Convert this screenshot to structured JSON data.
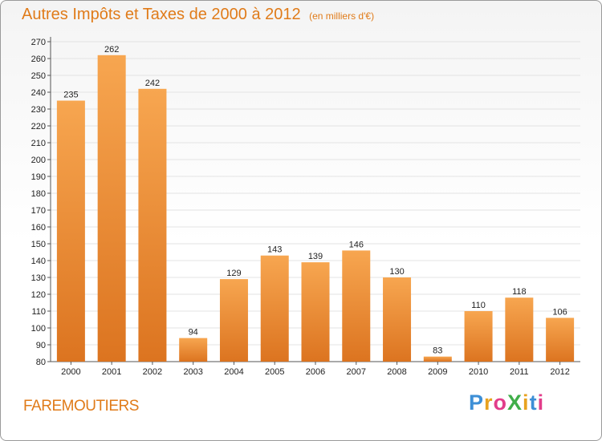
{
  "header": {
    "title": "Autres Impôts et Taxes de 2000 à 2012",
    "subtitle": "(en milliers d'€)"
  },
  "footer": {
    "place": "FAREMOUTIERS",
    "logo": "ProXiti"
  },
  "colors": {
    "bar_top": "#f7a650",
    "bar_bottom": "#dc7420",
    "title": "#e07b19",
    "grid": "#e3e3e3"
  },
  "chart_data": {
    "type": "bar",
    "title": "Autres Impôts et Taxes de 2000 à 2012",
    "subtitle": "(en milliers d'€)",
    "xlabel": "",
    "ylabel": "",
    "categories": [
      "2000",
      "2001",
      "2002",
      "2003",
      "2004",
      "2005",
      "2006",
      "2007",
      "2008",
      "2009",
      "2010",
      "2011",
      "2012"
    ],
    "values": [
      235,
      262,
      242,
      94,
      129,
      143,
      139,
      146,
      130,
      83,
      110,
      118,
      106
    ],
    "ylim": [
      80,
      270
    ],
    "yticks": [
      80,
      90,
      100,
      110,
      120,
      130,
      140,
      150,
      160,
      170,
      180,
      190,
      200,
      210,
      220,
      230,
      240,
      250,
      260,
      270
    ],
    "grid": true,
    "legend": "none",
    "data_labels": true
  }
}
